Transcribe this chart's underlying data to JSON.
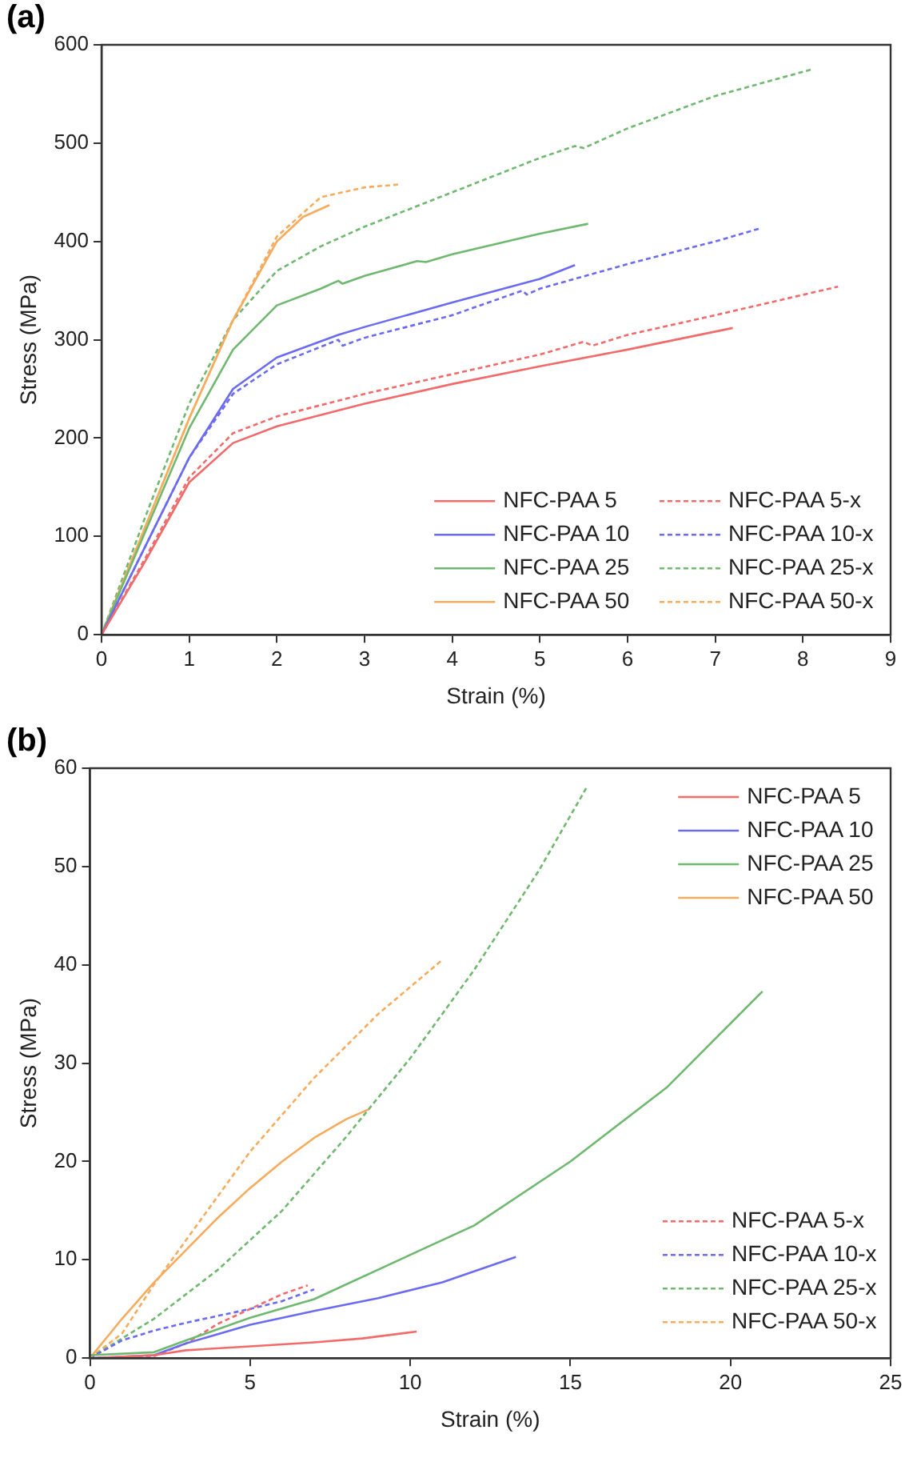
{
  "chart_data": [
    {
      "type": "line",
      "title": "(a)",
      "xlabel": "Strain (%)",
      "ylabel": "Stress (MPa)",
      "xlim": [
        0,
        9
      ],
      "xticks": [
        0,
        1,
        2,
        3,
        4,
        5,
        6,
        7,
        8,
        9
      ],
      "ylim": [
        0,
        600
      ],
      "yticks": [
        0,
        100,
        200,
        300,
        400,
        500,
        600
      ],
      "grid": false,
      "legend": "bottom right",
      "marker": "none",
      "series": [
        {
          "name": "NFC-PAA 5",
          "color": "#f26b6b",
          "line_style": "solid",
          "x": [
            0,
            0.5,
            1,
            1.5,
            2,
            3,
            4,
            5,
            6,
            7.2
          ],
          "values": [
            0,
            75,
            155,
            195,
            212,
            235,
            255,
            273,
            290,
            312
          ]
        },
        {
          "name": "NFC-PAA 10",
          "color": "#6b6bf2",
          "line_style": "solid",
          "x": [
            0,
            0.5,
            1,
            1.5,
            2,
            2.7,
            3,
            4,
            5,
            5.4
          ],
          "values": [
            0,
            90,
            180,
            250,
            282,
            305,
            313,
            338,
            362,
            376
          ]
        },
        {
          "name": "NFC-PAA 25",
          "color": "#6fb86f",
          "line_style": "solid",
          "x": [
            0,
            0.5,
            1,
            1.5,
            2,
            2.5,
            2.7,
            2.75,
            3,
            3.6,
            3.7,
            4,
            5,
            5.55
          ],
          "values": [
            0,
            105,
            210,
            290,
            335,
            352,
            360,
            357,
            365,
            380,
            379,
            387,
            408,
            418
          ]
        },
        {
          "name": "NFC-PAA 50",
          "color": "#f7ab5c",
          "line_style": "solid",
          "x": [
            0,
            0.5,
            1,
            1.5,
            2,
            2.3,
            2.6
          ],
          "values": [
            0,
            110,
            220,
            320,
            400,
            425,
            437
          ]
        },
        {
          "name": "NFC-PAA 5-x",
          "color": "#f26b6b",
          "line_style": "dashed",
          "x": [
            0,
            0.5,
            1,
            1.5,
            2,
            3,
            4,
            5,
            5.5,
            5.6,
            6,
            7,
            8.4
          ],
          "values": [
            0,
            78,
            160,
            205,
            222,
            245,
            265,
            285,
            298,
            294,
            305,
            325,
            354
          ]
        },
        {
          "name": "NFC-PAA 10-x",
          "color": "#6b6bf2",
          "line_style": "dashed",
          "x": [
            0,
            0.5,
            1,
            1.5,
            2,
            2.7,
            2.75,
            3,
            4,
            4.8,
            4.85,
            5,
            6,
            7,
            7.5
          ],
          "values": [
            0,
            90,
            180,
            245,
            275,
            300,
            294,
            302,
            325,
            350,
            346,
            352,
            377,
            400,
            413
          ]
        },
        {
          "name": "NFC-PAA 25-x",
          "color": "#6fb86f",
          "line_style": "dashed",
          "x": [
            0,
            0.5,
            1,
            1.5,
            2,
            2.5,
            3,
            4,
            5,
            5.4,
            5.5,
            6,
            7,
            8.1
          ],
          "values": [
            0,
            120,
            235,
            320,
            370,
            395,
            415,
            450,
            485,
            497,
            495,
            515,
            548,
            575
          ]
        },
        {
          "name": "NFC-PAA 50-x",
          "color": "#f7ab5c",
          "line_style": "dashed",
          "x": [
            0,
            0.5,
            1,
            1.5,
            2,
            2.5,
            3,
            3.4
          ],
          "values": [
            0,
            110,
            220,
            320,
            405,
            445,
            455,
            458
          ]
        }
      ]
    },
    {
      "type": "line",
      "title": "(b)",
      "xlabel": "Strain (%)",
      "ylabel": "Stress (MPa)",
      "xlim": [
        0,
        25
      ],
      "xticks": [
        0,
        5,
        10,
        15,
        20,
        25
      ],
      "ylim": [
        0,
        60
      ],
      "yticks": [
        0,
        10,
        20,
        30,
        40,
        50,
        60
      ],
      "grid": false,
      "legend": "right",
      "marker": "none",
      "series": [
        {
          "name": "NFC-PAA 5",
          "color": "#f26b6b",
          "line_style": "solid",
          "x": [
            0,
            2,
            3,
            5,
            7,
            8.5,
            10.2
          ],
          "values": [
            0,
            0.3,
            0.8,
            1.2,
            1.6,
            2,
            2.7
          ]
        },
        {
          "name": "NFC-PAA 10",
          "color": "#6b6bf2",
          "line_style": "solid",
          "x": [
            0,
            2,
            3,
            5,
            7,
            9,
            11,
            13.3
          ],
          "values": [
            0,
            0.3,
            1.5,
            3.4,
            4.8,
            6.1,
            7.7,
            10.3
          ]
        },
        {
          "name": "NFC-PAA 25",
          "color": "#6fb86f",
          "line_style": "solid",
          "x": [
            0,
            2,
            3,
            5,
            7,
            10,
            12,
            15,
            18,
            21
          ],
          "values": [
            0.3,
            0.6,
            1.8,
            4.1,
            6,
            10.5,
            13.5,
            20,
            27.5,
            37.3
          ]
        },
        {
          "name": "NFC-PAA 50",
          "color": "#f7ab5c",
          "line_style": "solid",
          "x": [
            0,
            1,
            2,
            3,
            4,
            5,
            6,
            7,
            8,
            8.7
          ],
          "values": [
            0,
            4,
            7.7,
            11,
            14.3,
            17.3,
            20,
            22.4,
            24.3,
            25.3
          ]
        },
        {
          "name": "NFC-PAA 5-x",
          "color": "#f26b6b",
          "line_style": "dashed",
          "x": [
            0,
            2,
            3,
            4,
            5,
            6,
            6.8
          ],
          "values": [
            0,
            0.2,
            1.5,
            3.5,
            5,
            6.5,
            7.4
          ]
        },
        {
          "name": "NFC-PAA 10-x",
          "color": "#6b6bf2",
          "line_style": "dashed",
          "x": [
            0,
            1,
            2,
            3,
            4,
            5,
            6,
            7
          ],
          "values": [
            0,
            1.8,
            2.8,
            3.6,
            4.3,
            5,
            5.8,
            7
          ]
        },
        {
          "name": "NFC-PAA 25-x",
          "color": "#6fb86f",
          "line_style": "dashed",
          "x": [
            0,
            2,
            4,
            6,
            8,
            10,
            12,
            14,
            15.5
          ],
          "values": [
            0,
            4,
            9,
            15,
            22.5,
            30.5,
            39.5,
            49.5,
            58
          ]
        },
        {
          "name": "NFC-PAA 50-x",
          "color": "#f7ab5c",
          "line_style": "dashed",
          "x": [
            0,
            1,
            2,
            3,
            4,
            5,
            7,
            9,
            11
          ],
          "values": [
            0,
            2.5,
            7.5,
            12,
            16.5,
            21,
            28.5,
            35,
            40.5
          ]
        }
      ]
    }
  ]
}
